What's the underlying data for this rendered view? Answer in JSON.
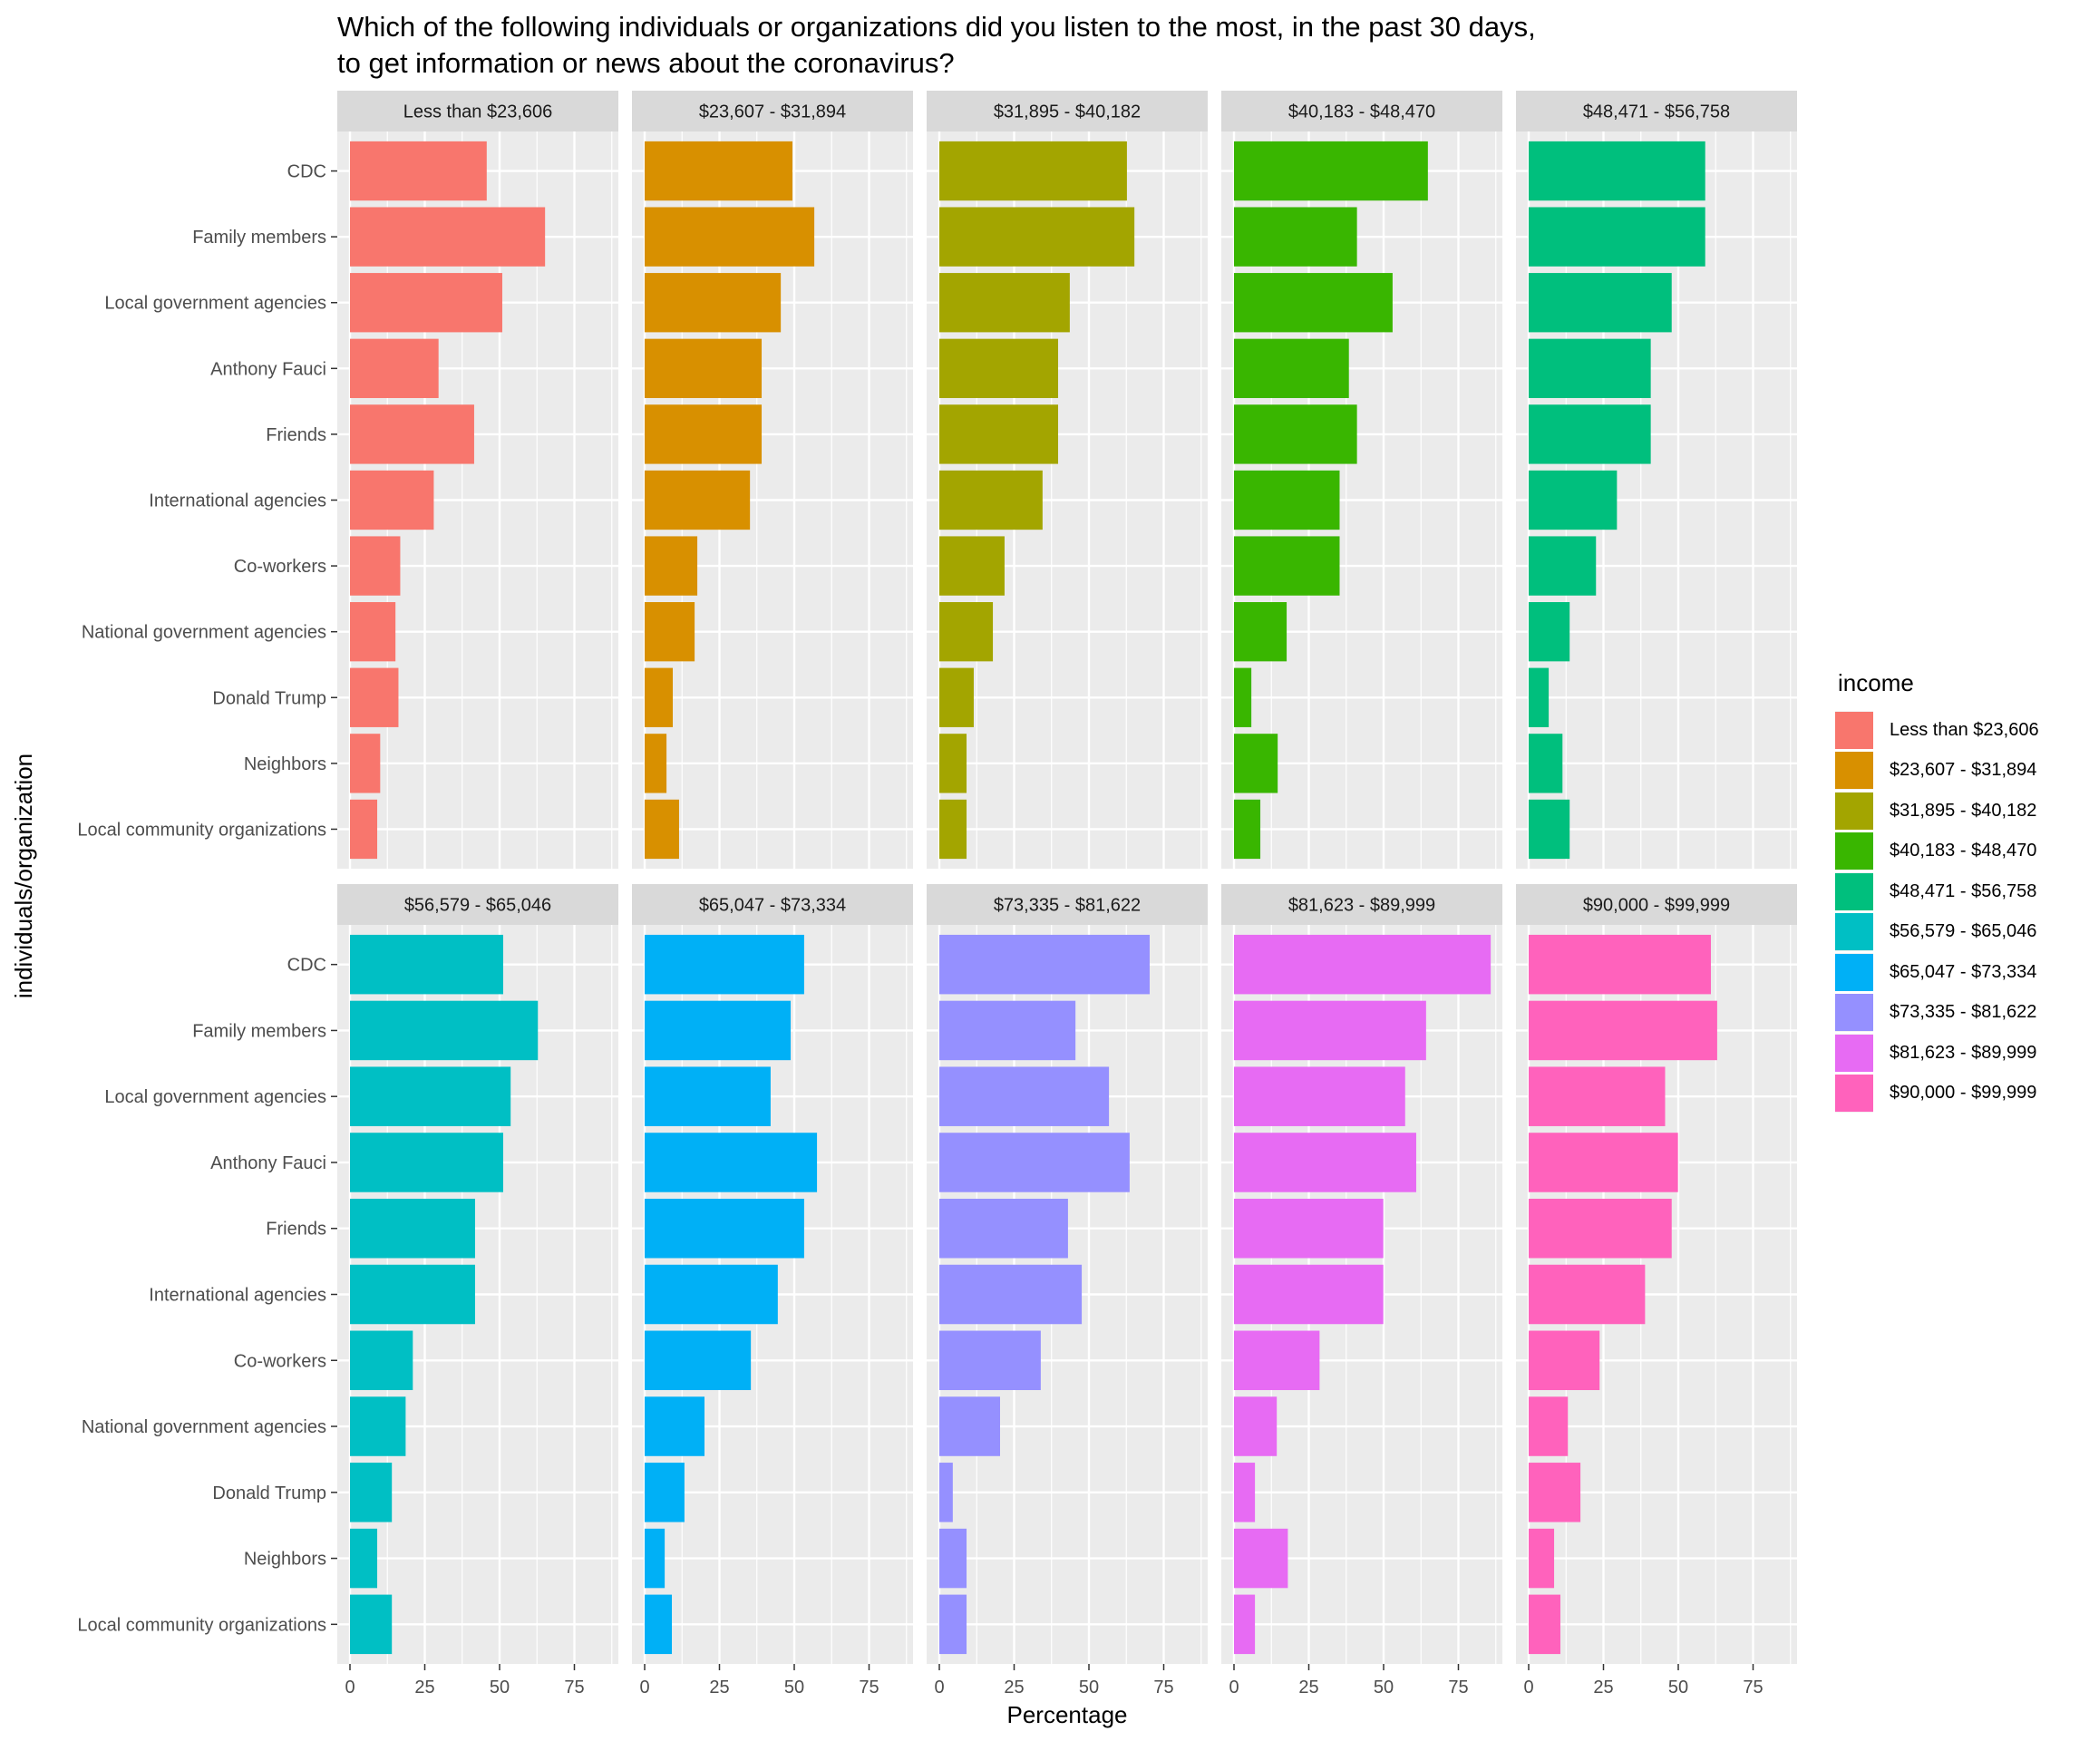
{
  "chart_data": {
    "type": "bar",
    "orientation": "horizontal",
    "title": "Which of the following individuals or organizations did you listen to the most, in the past 30 days,\nto get information or news about the coronavirus?",
    "xlabel": "Percentage",
    "ylabel": "individuals/organization",
    "xlim": [
      0,
      90
    ],
    "xticks": [
      "0",
      "25",
      "50",
      "75"
    ],
    "xtick_values": [
      0,
      25,
      50,
      75
    ],
    "grid": true,
    "legend": {
      "title": "income",
      "position": "right"
    },
    "categories": [
      "CDC",
      "Family members",
      "Local government agencies",
      "Anthony Fauci",
      "Friends",
      "International agencies",
      "Co-workers",
      "National government agencies",
      "Donald Trump",
      "Neighbors",
      "Local community organizations"
    ],
    "series": [
      {
        "name": "Less than $23,606",
        "color": "#F8766D",
        "values": [
          45.7,
          65.2,
          50.9,
          29.6,
          41.5,
          28.0,
          16.8,
          15.2,
          16.2,
          10.1,
          9.1
        ]
      },
      {
        "name": "$23,607 - $31,894",
        "color": "#D89000",
        "values": [
          49.4,
          56.7,
          45.5,
          39.1,
          39.1,
          35.2,
          17.6,
          16.7,
          9.4,
          7.3,
          11.5
        ]
      },
      {
        "name": "$31,895 - $40,182",
        "color": "#A3A500",
        "values": [
          62.7,
          65.2,
          43.6,
          39.7,
          39.7,
          34.5,
          21.8,
          17.9,
          11.5,
          9.1,
          9.1
        ]
      },
      {
        "name": "$40,183 - $48,470",
        "color": "#39B600",
        "values": [
          64.8,
          41.1,
          53.0,
          38.4,
          41.1,
          35.3,
          35.3,
          17.6,
          5.8,
          14.6,
          8.8
        ]
      },
      {
        "name": "$48,471 - $56,758",
        "color": "#00BF7D",
        "values": [
          59.0,
          59.0,
          47.8,
          40.8,
          40.8,
          29.5,
          22.5,
          13.7,
          6.7,
          11.3,
          13.7
        ]
      },
      {
        "name": "$56,579 - $65,046",
        "color": "#00BFC4",
        "values": [
          51.2,
          62.8,
          53.7,
          51.2,
          41.8,
          41.8,
          21.0,
          18.6,
          14.0,
          9.1,
          14.0
        ]
      },
      {
        "name": "$65,047 - $73,334",
        "color": "#00B0F6",
        "values": [
          53.3,
          48.8,
          42.1,
          57.6,
          53.3,
          44.5,
          35.5,
          20.0,
          13.3,
          6.7,
          9.1
        ]
      },
      {
        "name": "$73,335 - $81,622",
        "color": "#9590FF",
        "values": [
          70.3,
          45.5,
          56.7,
          63.6,
          43.0,
          47.6,
          33.9,
          20.3,
          4.5,
          9.1,
          9.1
        ]
      },
      {
        "name": "$81,623 - $89,999",
        "color": "#E76BF3",
        "values": [
          85.8,
          64.2,
          57.2,
          60.9,
          49.9,
          49.9,
          28.6,
          14.3,
          7.0,
          18.0,
          7.0
        ]
      },
      {
        "name": "$90,000 - $99,999",
        "color": "#FF62BC",
        "values": [
          60.9,
          63.0,
          45.6,
          49.9,
          47.8,
          38.9,
          23.7,
          13.1,
          17.3,
          8.5,
          10.6
        ]
      }
    ]
  }
}
